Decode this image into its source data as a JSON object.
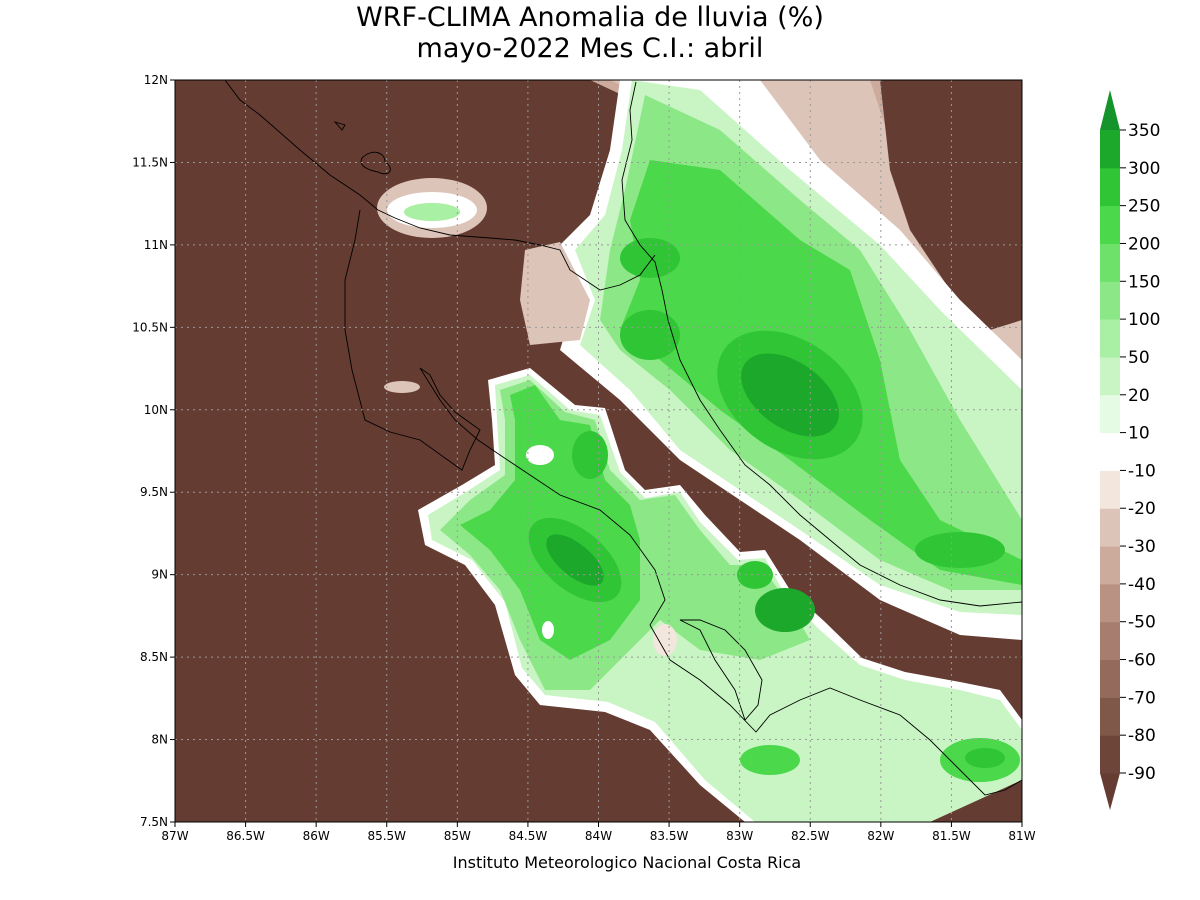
{
  "title": [
    "WRF-CLIMA Anomalia de lluvia (%)",
    "mayo-2022 Mes C.I.: abril"
  ],
  "map": {
    "xlim": [
      -87,
      -81
    ],
    "ylim": [
      7.5,
      12
    ],
    "xticks": [
      {
        "value": -87,
        "label": "87W"
      },
      {
        "value": -86.5,
        "label": "86.5W"
      },
      {
        "value": -86,
        "label": "86W"
      },
      {
        "value": -85.5,
        "label": "85.5W"
      },
      {
        "value": -85,
        "label": "85W"
      },
      {
        "value": -84.5,
        "label": "84.5W"
      },
      {
        "value": -84,
        "label": "84W"
      },
      {
        "value": -83.5,
        "label": "83.5W"
      },
      {
        "value": -83,
        "label": "83W"
      },
      {
        "value": -82.5,
        "label": "82.5W"
      },
      {
        "value": -82,
        "label": "82W"
      },
      {
        "value": -81.5,
        "label": "81.5W"
      },
      {
        "value": -81,
        "label": "81W"
      }
    ],
    "yticks": [
      {
        "value": 7.5,
        "label": "7.5N"
      },
      {
        "value": 8,
        "label": "8N"
      },
      {
        "value": 8.5,
        "label": "8.5N"
      },
      {
        "value": 9,
        "label": "9N"
      },
      {
        "value": 9.5,
        "label": "9.5N"
      },
      {
        "value": 10,
        "label": "10N"
      },
      {
        "value": 10.5,
        "label": "10.5N"
      },
      {
        "value": 11,
        "label": "11N"
      },
      {
        "value": 11.5,
        "label": "11.5N"
      },
      {
        "value": 12,
        "label": "12N"
      }
    ]
  },
  "colorbar": {
    "levels": [
      -90,
      -80,
      -70,
      -60,
      -50,
      -40,
      -30,
      -20,
      -10,
      10,
      20,
      50,
      100,
      150,
      200,
      250,
      300,
      350
    ],
    "colors": [
      "#643c32",
      "#6e4639",
      "#80584a",
      "#936a5c",
      "#a67d6e",
      "#b99283",
      "#ccaa9c",
      "#ddc4b8",
      "#f3e6dd",
      "#ffffff",
      "#e6fbe4",
      "#c8f5c3",
      "#aaf0a4",
      "#8ce887",
      "#6ee16a",
      "#4cd84b",
      "#30c535",
      "#1ca82a",
      "#14942a"
    ]
  },
  "footer": "Instituto Meteorologico Nacional Costa Rica"
}
